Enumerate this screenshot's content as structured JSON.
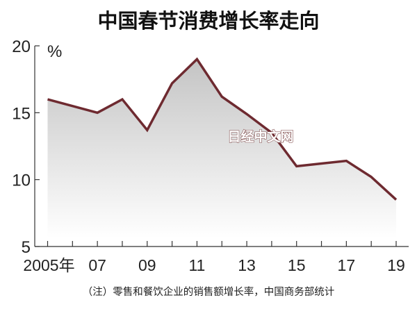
{
  "chart_data": {
    "type": "area",
    "title": "中国春节消费增长率走向",
    "ylabel": "%",
    "xlabel": "",
    "x": [
      2005,
      2006,
      2007,
      2008,
      2009,
      2010,
      2011,
      2012,
      2013,
      2014,
      2015,
      2016,
      2017,
      2018,
      2019
    ],
    "values": [
      16.0,
      15.5,
      15.0,
      16.0,
      13.7,
      17.2,
      19.0,
      16.2,
      14.9,
      13.5,
      11.0,
      11.2,
      11.4,
      10.2,
      8.5
    ],
    "ylim": [
      5,
      20
    ],
    "yticks": [
      5,
      10,
      15,
      20
    ],
    "ytick_labels": [
      "5",
      "10",
      "15",
      "20"
    ],
    "xtick_labels": [
      {
        "x": 2005,
        "label": "2005年"
      },
      {
        "x": 2007,
        "label": "07"
      },
      {
        "x": 2009,
        "label": "09"
      },
      {
        "x": 2011,
        "label": "11"
      },
      {
        "x": 2013,
        "label": "13"
      },
      {
        "x": 2015,
        "label": "15"
      },
      {
        "x": 2017,
        "label": "17"
      },
      {
        "x": 2019,
        "label": "19"
      }
    ],
    "grid": false,
    "line_color": "#6e2a30",
    "fill_color": "#c8c8c8",
    "note": "（注）零售和餐饮企业的销售额增长率，中国商务部统计"
  },
  "watermark": "日经中文网"
}
